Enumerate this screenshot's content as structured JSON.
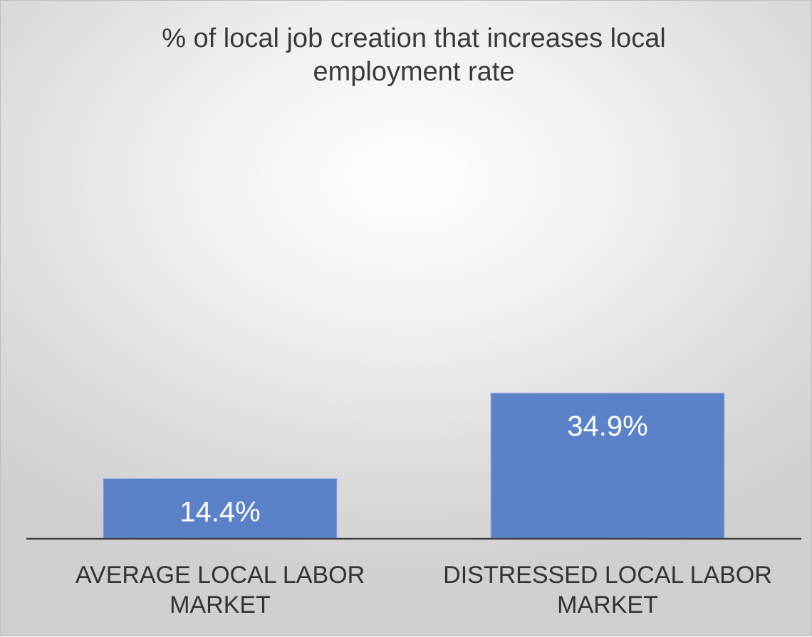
{
  "chart_data": {
    "type": "bar",
    "title": "% of local job creation that increases local employment rate",
    "categories": [
      "AVERAGE LOCAL LABOR MARKET",
      "DISTRESSED LOCAL LABOR MARKET"
    ],
    "values": [
      14.4,
      34.9
    ],
    "data_labels": [
      "14.4%",
      "34.9%"
    ],
    "ylim": [
      0,
      100
    ],
    "y_axis_visible": false,
    "grid": false,
    "legend": "none",
    "colors": {
      "bar": "#5b82c9",
      "data_label": "#ffffff",
      "axis": "#404040"
    }
  }
}
